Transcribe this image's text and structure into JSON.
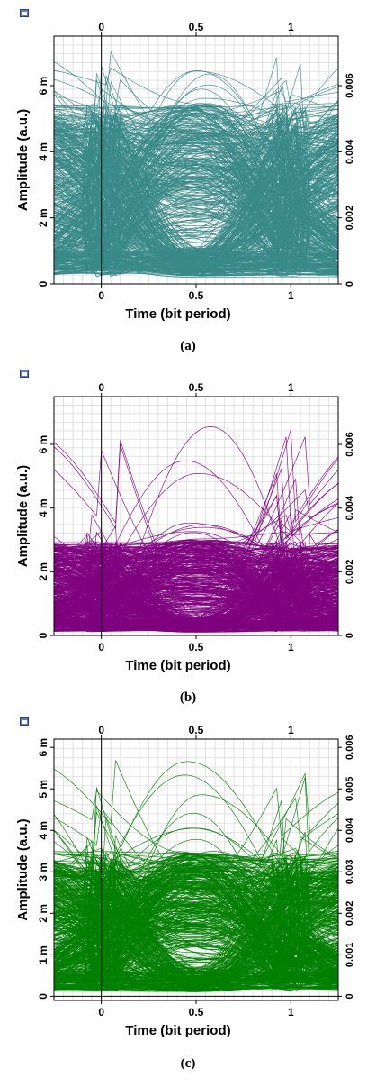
{
  "chart_data": [
    {
      "type": "line",
      "title": "",
      "xlabel": "Time (bit period)",
      "ylabel": "Amplitude (a.u.)",
      "xlim": [
        -0.25,
        1.25
      ],
      "ylim": [
        0,
        0.0075
      ],
      "x_ticks": [
        {
          "v": 0,
          "label": "0"
        },
        {
          "v": 0.5,
          "label": "0.5"
        },
        {
          "v": 1,
          "label": "1"
        }
      ],
      "y_ticks_left": [
        {
          "v": 0,
          "label": "0"
        },
        {
          "v": 0.002,
          "label": "2 m"
        },
        {
          "v": 0.004,
          "label": "4 m"
        },
        {
          "v": 0.006,
          "label": "6 m"
        }
      ],
      "y_ticks_right": [
        {
          "v": 0,
          "label": "0"
        },
        {
          "v": 0.002,
          "label": "0.002"
        },
        {
          "v": 0.004,
          "label": "0.004"
        },
        {
          "v": 0.006,
          "label": "0.006"
        }
      ],
      "grid": true,
      "trace_color": "#3a8a8a",
      "eye_diagram": {
        "num_traces": 520,
        "max_level": 0.0072,
        "typical_peak": 0.0055,
        "floor": 0.0002
      },
      "caption": "(a)"
    },
    {
      "type": "line",
      "title": "",
      "xlabel": "Time (bit period)",
      "ylabel": "Amplitude (a.u.)",
      "xlim": [
        -0.25,
        1.25
      ],
      "ylim": [
        0,
        0.0075
      ],
      "x_ticks": [
        {
          "v": 0,
          "label": "0"
        },
        {
          "v": 0.5,
          "label": "0.5"
        },
        {
          "v": 1,
          "label": "1"
        }
      ],
      "y_ticks_left": [
        {
          "v": 0,
          "label": "0"
        },
        {
          "v": 0.002,
          "label": "2 m"
        },
        {
          "v": 0.004,
          "label": "4 m"
        },
        {
          "v": 0.006,
          "label": "6 m"
        }
      ],
      "y_ticks_right": [
        {
          "v": 0,
          "label": "0"
        },
        {
          "v": 0.002,
          "label": "0.002"
        },
        {
          "v": 0.004,
          "label": "0.004"
        },
        {
          "v": 0.006,
          "label": "0.006"
        }
      ],
      "grid": true,
      "trace_color": "#800080",
      "eye_diagram": {
        "num_traces": 520,
        "max_level": 0.007,
        "typical_peak": 0.003,
        "floor": 0.0001
      },
      "caption": "(b)"
    },
    {
      "type": "line",
      "title": "",
      "xlabel": "Time (bit period)",
      "ylabel": "Amplitude (a.u.)",
      "xlim": [
        -0.25,
        1.25
      ],
      "ylim": [
        -0.0001,
        0.0062
      ],
      "x_ticks": [
        {
          "v": 0,
          "label": "0"
        },
        {
          "v": 0.5,
          "label": "0.5"
        },
        {
          "v": 1,
          "label": "1"
        }
      ],
      "y_ticks_left": [
        {
          "v": 0,
          "label": "0"
        },
        {
          "v": 0.001,
          "label": "1 m"
        },
        {
          "v": 0.002,
          "label": "2 m"
        },
        {
          "v": 0.003,
          "label": "3 m"
        },
        {
          "v": 0.004,
          "label": "4 m"
        },
        {
          "v": 0.005,
          "label": "5 m"
        },
        {
          "v": 0.006,
          "label": "6 m"
        }
      ],
      "y_ticks_right": [
        {
          "v": 0,
          "label": "0"
        },
        {
          "v": 0.001,
          "label": "0.001"
        },
        {
          "v": 0.002,
          "label": "0.002"
        },
        {
          "v": 0.003,
          "label": "0.003"
        },
        {
          "v": 0.004,
          "label": "0.004"
        },
        {
          "v": 0.005,
          "label": "0.005"
        },
        {
          "v": 0.006,
          "label": "0.006"
        }
      ],
      "grid": true,
      "trace_color": "#008000",
      "eye_diagram": {
        "num_traces": 520,
        "max_level": 0.0058,
        "typical_peak": 0.0035,
        "floor": 0.0001
      },
      "caption": "(c)"
    }
  ]
}
